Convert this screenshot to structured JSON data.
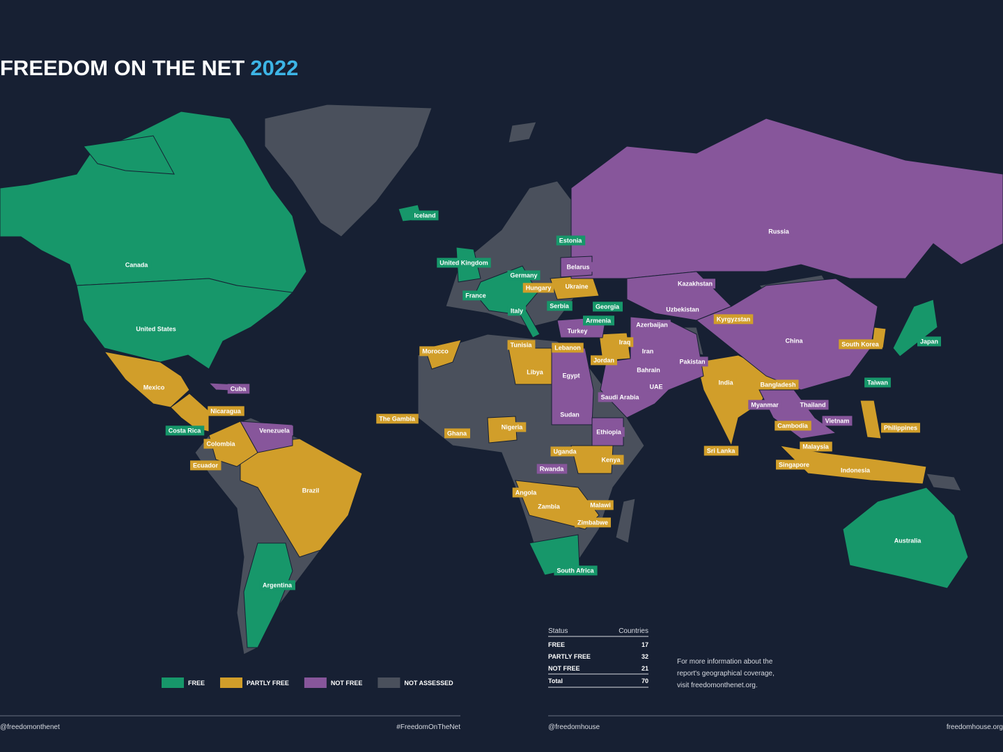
{
  "title": {
    "main": "FREEDOM ON THE NET",
    "year": "2022"
  },
  "legend": [
    {
      "label": "FREE",
      "color": "#17976a",
      "countries": [
        "Iceland",
        "Estonia",
        "United Kingdom",
        "Canada",
        "Germany",
        "France",
        "Serbia",
        "Georgia",
        "Italy",
        "Armenia",
        "United States",
        "Japan",
        "Taiwan",
        "Costa Rica",
        "Argentina",
        "Australia",
        "South Africa"
      ]
    },
    {
      "label": "PARTLY FREE",
      "color": "#d19e2a",
      "countries": [
        "Hungary",
        "Ukraine",
        "Kyrgyzstan",
        "Iraq",
        "Tunisia",
        "Morocco",
        "Lebanon",
        "South Korea",
        "Jordan",
        "Libya",
        "India",
        "Bangladesh",
        "Mexico",
        "Nicaragua",
        "The Gambia",
        "Cambodia",
        "Philippines",
        "Nigeria",
        "Ghana",
        "Colombia",
        "Malaysia",
        "Sri Lanka",
        "Uganda",
        "Kenya",
        "Ecuador",
        "Singapore",
        "Indonesia",
        "Brazil",
        "Angola",
        "Malawi",
        "Zambia",
        "Zimbabwe"
      ]
    },
    {
      "label": "NOT FREE",
      "color": "#87569b",
      "countries": [
        "Russia",
        "Belarus",
        "Kazakhstan",
        "Uzbekistan",
        "Azerbaijan",
        "Turkey",
        "China",
        "Iran",
        "Pakistan",
        "Bahrain",
        "Egypt",
        "UAE",
        "Cuba",
        "Saudi Arabia",
        "Myanmar",
        "Thailand",
        "Sudan",
        "Vietnam",
        "Venezuela",
        "Ethiopia",
        "Rwanda"
      ]
    },
    {
      "label": "NOT ASSESSED",
      "color": "#4a505c"
    }
  ],
  "table": {
    "header": [
      "Status",
      "Countries"
    ],
    "rows": [
      [
        "FREE",
        17
      ],
      [
        "PARTLY FREE",
        32
      ],
      [
        "NOT FREE",
        21
      ]
    ],
    "total": [
      "Total",
      70
    ]
  },
  "note": [
    "For more information about the",
    "report's geographical coverage,",
    "visit freedomonthenet.org."
  ],
  "footer": [
    "@freedomonthenet",
    "#FreedomOnTheNet",
    "@freedomhouse",
    "freedomhouse.org"
  ]
}
